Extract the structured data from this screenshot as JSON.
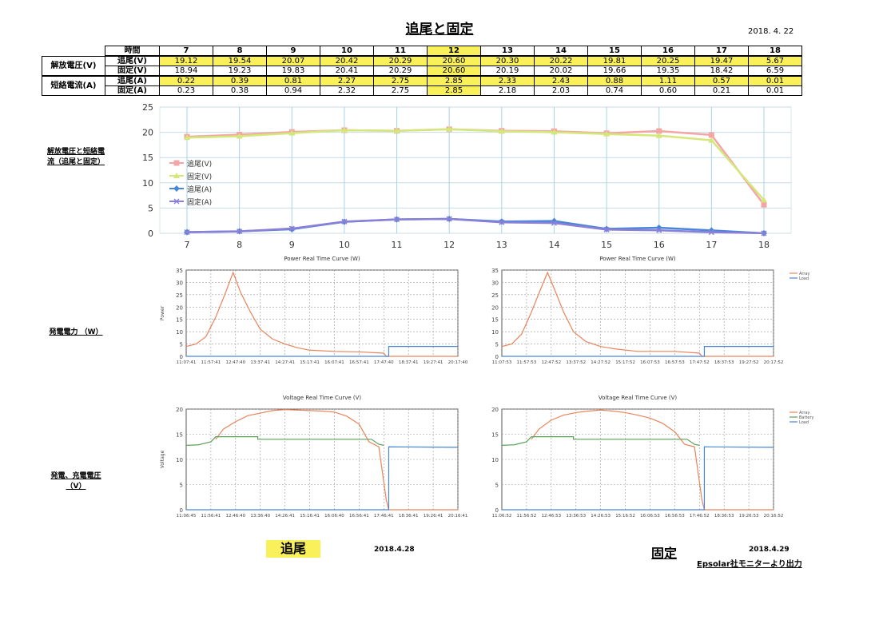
{
  "title": "追尾と固定",
  "date_top": "2018. 4. 22",
  "table": {
    "hours_header": "時間",
    "hours": [
      "7",
      "8",
      "9",
      "10",
      "11",
      "12",
      "13",
      "14",
      "15",
      "16",
      "17",
      "18"
    ],
    "groups": [
      {
        "label": "解放電圧(V)",
        "rows": [
          {
            "label": "追尾(V)",
            "values": [
              "19.12",
              "19.54",
              "20.07",
              "20.42",
              "20.29",
              "20.60",
              "20.30",
              "20.22",
              "19.81",
              "20.25",
              "19.47",
              "5.67"
            ]
          },
          {
            "label": "固定(V)",
            "values": [
              "18.94",
              "19.23",
              "19.83",
              "20.41",
              "20.29",
              "20.60",
              "20.19",
              "20.02",
              "19.66",
              "19.35",
              "18.42",
              "6.59"
            ]
          }
        ]
      },
      {
        "label": "短絡電流(A)",
        "rows": [
          {
            "label": "追尾(A)",
            "values": [
              "0.22",
              "0.39",
              "0.81",
              "2.27",
              "2.75",
              "2.85",
              "2.33",
              "2.43",
              "0.88",
              "1.11",
              "0.57",
              "0.01"
            ]
          },
          {
            "label": "固定(A)",
            "values": [
              "0.23",
              "0.38",
              "0.94",
              "2.32",
              "2.75",
              "2.85",
              "2.18",
              "2.03",
              "0.74",
              "0.60",
              "0.21",
              "0.01"
            ]
          }
        ]
      }
    ]
  },
  "side_labels": {
    "main_chart": [
      "解放電圧と短絡電",
      "流（追尾と固定）"
    ],
    "power": "発電電力 （W）",
    "voltage": [
      "発電、充電電圧",
      "（V）"
    ]
  },
  "chart_data": [
    {
      "type": "line",
      "categories": [
        "7",
        "8",
        "9",
        "10",
        "11",
        "12",
        "13",
        "14",
        "15",
        "16",
        "17",
        "18"
      ],
      "ylim": [
        0,
        25
      ],
      "yticks": [
        "0",
        "5",
        "10",
        "15",
        "20",
        "25"
      ],
      "grid": true,
      "legend_position": "left",
      "series": [
        {
          "name": "追尾(V)",
          "color": "#f4a6a6",
          "marker": "square",
          "values": [
            19.12,
            19.54,
            20.07,
            20.42,
            20.29,
            20.6,
            20.3,
            20.22,
            19.81,
            20.25,
            19.47,
            5.67
          ]
        },
        {
          "name": "固定(V)",
          "color": "#d4e87a",
          "marker": "triangle",
          "values": [
            18.94,
            19.23,
            19.83,
            20.41,
            20.29,
            20.6,
            20.19,
            20.02,
            19.66,
            19.35,
            18.42,
            6.59
          ]
        },
        {
          "name": "追尾(A)",
          "color": "#4a86d8",
          "marker": "diamond",
          "values": [
            0.22,
            0.39,
            0.81,
            2.27,
            2.75,
            2.85,
            2.33,
            2.43,
            0.88,
            1.11,
            0.57,
            0.01
          ]
        },
        {
          "name": "固定(A)",
          "color": "#8a80d8",
          "marker": "x",
          "values": [
            0.23,
            0.38,
            0.94,
            2.32,
            2.75,
            2.85,
            2.18,
            2.03,
            0.74,
            0.6,
            0.21,
            0.01
          ]
        }
      ]
    },
    {
      "type": "line",
      "title": "Power Real Time Curve (W)",
      "ylabel": "Power",
      "ylim": [
        0,
        35
      ],
      "yticks": [
        "0",
        "5",
        "10",
        "15",
        "20",
        "25",
        "30",
        "35"
      ],
      "xticks": [
        "11:07:41",
        "11:57:41",
        "12:47:40",
        "13:37:41",
        "14:27:41",
        "15:17:41",
        "16:07:41",
        "16:57:41",
        "17:47:40",
        "18:37:41",
        "19:27:41",
        "20:17:40"
      ],
      "grid": true,
      "series": [
        {
          "color": "#e8845a",
          "points": [
            [
              0,
              4
            ],
            [
              0.4,
              5
            ],
            [
              0.8,
              8
            ],
            [
              1.2,
              16
            ],
            [
              1.6,
              26
            ],
            [
              1.9,
              34
            ],
            [
              2.05,
              30
            ],
            [
              2.2,
              26
            ],
            [
              2.6,
              18
            ],
            [
              3,
              11
            ],
            [
              3.5,
              7
            ],
            [
              4,
              5
            ],
            [
              4.5,
              3.5
            ],
            [
              5,
              2.5
            ],
            [
              6,
              2
            ],
            [
              7,
              1.8
            ],
            [
              8,
              1.3
            ],
            [
              8.1,
              0
            ],
            [
              11,
              0
            ]
          ]
        },
        {
          "color": "#4a86d8",
          "points": [
            [
              0,
              0
            ],
            [
              8.2,
              0
            ],
            [
              8.2,
              4
            ],
            [
              11,
              4
            ]
          ]
        }
      ]
    },
    {
      "type": "line",
      "title": "Power Real Time Curve (W)",
      "ylim": [
        0,
        35
      ],
      "yticks": [
        "0",
        "5",
        "10",
        "15",
        "20",
        "25",
        "30",
        "35"
      ],
      "xticks": [
        "11:07:53",
        "11:57:53",
        "12:47:52",
        "13:37:52",
        "14:27:52",
        "15:17:52",
        "16:07:53",
        "16:57:53",
        "17:47:52",
        "18:37:53",
        "19:27:52",
        "20:17:52"
      ],
      "grid": true,
      "legend": [
        "Array",
        "Load"
      ],
      "legend_position": "top-right",
      "series": [
        {
          "name": "Array",
          "color": "#e8845a",
          "points": [
            [
              0,
              4
            ],
            [
              0.4,
              5
            ],
            [
              0.8,
              9
            ],
            [
              1.2,
              18
            ],
            [
              1.6,
              28
            ],
            [
              1.85,
              34
            ],
            [
              2.1,
              28
            ],
            [
              2.5,
              18
            ],
            [
              2.9,
              10
            ],
            [
              3.4,
              6
            ],
            [
              4,
              4
            ],
            [
              4.6,
              3
            ],
            [
              5.5,
              2
            ],
            [
              7,
              2
            ],
            [
              8,
              1.3
            ],
            [
              8.1,
              0
            ],
            [
              11,
              0
            ]
          ]
        },
        {
          "name": "Load",
          "color": "#4a86d8",
          "points": [
            [
              0,
              0
            ],
            [
              8.2,
              0
            ],
            [
              8.2,
              4
            ],
            [
              11,
              4
            ]
          ]
        }
      ]
    },
    {
      "type": "line",
      "title": "Voltage Real Time Curve (V)",
      "ylabel": "Voltage",
      "ylim": [
        0,
        20
      ],
      "yticks": [
        "0",
        "5",
        "10",
        "15",
        "20"
      ],
      "xticks": [
        "11:06:45",
        "11:56:41",
        "12:46:40",
        "13:36:40",
        "14:26:41",
        "15:16:41",
        "16:06:40",
        "16:56:41",
        "17:46:41",
        "18:36:41",
        "19:26:41",
        "20:16:41"
      ],
      "grid": true,
      "series": [
        {
          "color": "#e8845a",
          "points": [
            [
              1.2,
              14
            ],
            [
              1.5,
              16
            ],
            [
              2,
              17.5
            ],
            [
              2.5,
              18.7
            ],
            [
              3,
              19.2
            ],
            [
              3.5,
              19.7
            ],
            [
              4,
              19.9
            ],
            [
              4.5,
              19.8
            ],
            [
              5,
              19.7
            ],
            [
              5.5,
              19.6
            ],
            [
              6,
              19.4
            ],
            [
              6.5,
              18.6
            ],
            [
              7,
              17
            ],
            [
              7.4,
              13.5
            ],
            [
              7.8,
              12.5
            ],
            [
              8.1,
              2
            ],
            [
              8.2,
              0
            ],
            [
              11,
              0
            ]
          ]
        },
        {
          "color": "#5aa05a",
          "points": [
            [
              0,
              12.8
            ],
            [
              0.5,
              12.9
            ],
            [
              1,
              13.5
            ],
            [
              1.2,
              14.5
            ],
            [
              2.9,
              14.5
            ],
            [
              2.9,
              14
            ],
            [
              7.5,
              14
            ],
            [
              7.8,
              13
            ],
            [
              8.0,
              12.8
            ]
          ]
        },
        {
          "color": "#4a86d8",
          "points": [
            [
              0,
              0
            ],
            [
              8.2,
              0
            ],
            [
              8.2,
              12.5
            ],
            [
              11,
              12.4
            ]
          ]
        }
      ]
    },
    {
      "type": "line",
      "title": "Voltage Real Time Curve (V)",
      "ylim": [
        0,
        20
      ],
      "yticks": [
        "0",
        "5",
        "10",
        "15",
        "20"
      ],
      "xticks": [
        "11:06:52",
        "11:56:52",
        "12:46:53",
        "13:36:53",
        "14:26:53",
        "15:16:52",
        "16:06:53",
        "16:56:53",
        "17:46:52",
        "18:36:53",
        "19:26:53",
        "20:16:52"
      ],
      "grid": true,
      "legend": [
        "Array",
        "Battery",
        "Load"
      ],
      "legend_position": "top-right",
      "series": [
        {
          "name": "Array",
          "color": "#e8845a",
          "points": [
            [
              1.2,
              14
            ],
            [
              1.5,
              16
            ],
            [
              2,
              17.8
            ],
            [
              2.5,
              18.8
            ],
            [
              3,
              19.3
            ],
            [
              3.5,
              19.6
            ],
            [
              4,
              19.8
            ],
            [
              4.5,
              19.6
            ],
            [
              5,
              19.3
            ],
            [
              5.5,
              18.8
            ],
            [
              6,
              18.2
            ],
            [
              6.5,
              17.2
            ],
            [
              7,
              15.5
            ],
            [
              7.4,
              13
            ],
            [
              7.8,
              12.5
            ],
            [
              8.1,
              2
            ],
            [
              8.2,
              0
            ],
            [
              11,
              0
            ]
          ]
        },
        {
          "name": "Battery",
          "color": "#5aa05a",
          "points": [
            [
              0,
              12.8
            ],
            [
              0.5,
              12.9
            ],
            [
              1,
              13.5
            ],
            [
              1.2,
              14.5
            ],
            [
              2.9,
              14.5
            ],
            [
              2.9,
              14
            ],
            [
              7.5,
              14
            ],
            [
              7.8,
              13
            ],
            [
              8.0,
              12.8
            ]
          ]
        },
        {
          "name": "Load",
          "color": "#4a86d8",
          "points": [
            [
              0,
              0
            ],
            [
              8.2,
              0
            ],
            [
              8.2,
              12.5
            ],
            [
              11,
              12.4
            ]
          ]
        }
      ]
    }
  ],
  "bottom": {
    "tracking_label": "追尾",
    "tracking_date": "2018.4.28",
    "fixed_label": "固定",
    "fixed_date": "2018.4.29",
    "source_note": "Epsolar社モニターより出力"
  }
}
